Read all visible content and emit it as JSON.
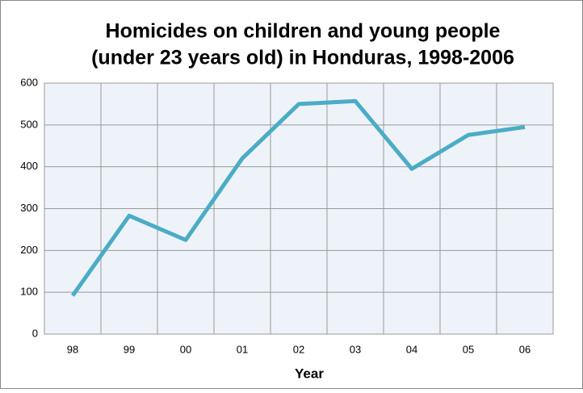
{
  "chart_data": {
    "type": "line",
    "title": [
      "Homicides on children and young people",
      "(under 23 years old) in Honduras, 1998-2006"
    ],
    "x_label": "Year",
    "categories": [
      "98",
      "99",
      "00",
      "01",
      "02",
      "03",
      "04",
      "05",
      "06"
    ],
    "series": [
      {
        "name": "Homicides",
        "color": "#4bacc6",
        "values": [
          92,
          283,
          225,
          420,
          550,
          557,
          395,
          476,
          495
        ]
      }
    ],
    "ylim": [
      0,
      600
    ],
    "yticks": [
      0,
      100,
      200,
      300,
      400,
      500,
      600
    ],
    "grid": true
  }
}
